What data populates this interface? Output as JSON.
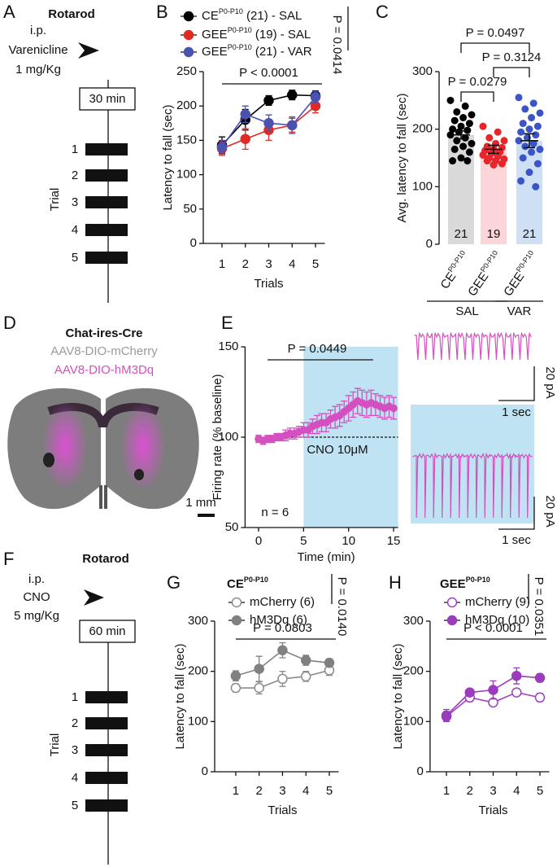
{
  "panel_labels": [
    "A",
    "B",
    "C",
    "D",
    "E",
    "F",
    "G",
    "H"
  ],
  "rotarod_a": {
    "title": "Rotarod",
    "route": "i.p.",
    "drug": "Varenicline",
    "dose": "1 mg/Kg",
    "wait": "30 min",
    "trials": [
      1,
      2,
      3,
      4,
      5
    ],
    "trial_label": "Trial"
  },
  "rotarod_f": {
    "title": "Rotarod",
    "route": "i.p.",
    "drug": "CNO",
    "dose": "5 mg/Kg",
    "wait": "60 min",
    "trials": [
      1,
      2,
      3,
      4,
      5
    ],
    "trial_label": "Trial"
  },
  "histology": {
    "title": "Chat-ires-Cre",
    "line1": "AAV8-DIO-mCherry",
    "line2": "AAV8-DIO-hM3Dq",
    "scale": "1 mm"
  },
  "traces": {
    "scale_current": [
      "20 pA",
      "20 pA"
    ],
    "scale_time": [
      "1 sec",
      "1 sec"
    ]
  },
  "chart_data": [
    {
      "type": "line",
      "xlabel": "Trials",
      "ylabel": "Latency to fall (sec)",
      "x": [
        1,
        2,
        3,
        4,
        5
      ],
      "xlim": [
        0.2,
        5.4
      ],
      "xticks": [
        1,
        2,
        3,
        4,
        5
      ],
      "ylim": [
        0,
        250
      ],
      "yticks": [
        0,
        50,
        100,
        150,
        200,
        250
      ],
      "series": [
        {
          "name": "CE",
          "name_sup": "P0-P10",
          "name_suffix": " (21) - SAL",
          "color": "#000000",
          "marker": "filled",
          "values": [
            143,
            180,
            208,
            216,
            215
          ],
          "errors": [
            12,
            15,
            7,
            7,
            7
          ]
        },
        {
          "name": "GEE",
          "name_sup": "P0-P10",
          "name_suffix": " (19) - SAL",
          "color": "#e02a26",
          "marker": "filled",
          "values": [
            138,
            152,
            165,
            172,
            200
          ],
          "errors": [
            10,
            15,
            15,
            10,
            10
          ]
        },
        {
          "name": "GEE",
          "name_sup": "P0-P10",
          "name_suffix": " (21) - VAR",
          "color": "#4a52b0",
          "marker": "filled",
          "values": [
            140,
            188,
            175,
            172,
            213
          ],
          "errors": [
            10,
            12,
            12,
            12,
            8
          ]
        }
      ],
      "stat": "P < 0.0001",
      "stat_span": [
        1,
        5
      ],
      "side_stat": "P = 0.0414"
    },
    {
      "type": "bar",
      "ylabel": "Avg. latency to fall (sec)",
      "categories": [
        "CE",
        "GEE",
        "GEE"
      ],
      "category_sups": [
        "P0-P10",
        "P0-P10",
        "P0-P10"
      ],
      "values": [
        190,
        165,
        180
      ],
      "errors": [
        7,
        7,
        12
      ],
      "bar_colors": [
        "#d9d9d9",
        "#fcd5d8",
        "#cfe0f5"
      ],
      "point_colors": [
        "#000000",
        "#e8262a",
        "#3b55c6"
      ],
      "points": [
        [
          250,
          240,
          230,
          225,
          220,
          215,
          210,
          205,
          200,
          198,
          195,
          190,
          185,
          180,
          175,
          170,
          165,
          160,
          150,
          145,
          145
        ],
        [
          205,
          195,
          185,
          180,
          175,
          170,
          168,
          165,
          163,
          160,
          158,
          155,
          153,
          150,
          148,
          145,
          145,
          140,
          138
        ],
        [
          255,
          245,
          235,
          228,
          220,
          210,
          205,
          200,
          195,
          190,
          185,
          180,
          175,
          170,
          165,
          160,
          150,
          140,
          125,
          110,
          100
        ]
      ],
      "n_labels": [
        21,
        19,
        21
      ],
      "ylim": [
        0,
        300
      ],
      "yticks": [
        0,
        100,
        200,
        300
      ],
      "groups": [
        {
          "label": "SAL",
          "members": [
            0,
            1
          ]
        },
        {
          "label": "VAR",
          "members": [
            2
          ]
        }
      ],
      "comparisons": [
        {
          "label": "P = 0.0279",
          "between": [
            0,
            1
          ]
        },
        {
          "label": "P = 0.3124",
          "between": [
            1,
            2
          ]
        },
        {
          "label": "P = 0.0497",
          "between": [
            0,
            2
          ]
        }
      ]
    },
    {
      "type": "line",
      "xlabel": "Time (min)",
      "ylabel": "Firing rate (% baseline)",
      "x": [
        0,
        0.5,
        1,
        1.5,
        2,
        2.5,
        3,
        3.5,
        4,
        4.5,
        5,
        5.5,
        6,
        6.5,
        7,
        7.5,
        8,
        8.5,
        9,
        9.5,
        10,
        10.5,
        11,
        11.5,
        12,
        12.5,
        13,
        13.5,
        14,
        14.5,
        15
      ],
      "values": [
        99,
        98,
        99,
        99,
        100,
        100,
        101,
        102,
        102,
        103,
        104,
        104,
        106,
        107,
        108,
        108,
        110,
        111,
        112,
        114,
        116,
        118,
        120,
        119,
        118,
        119,
        118,
        117,
        116,
        117,
        116
      ],
      "errors": [
        2,
        2,
        2,
        2,
        2,
        2,
        3,
        3,
        3,
        3,
        4,
        4,
        4,
        5,
        5,
        5,
        5,
        6,
        6,
        6,
        7,
        7,
        7,
        7,
        7,
        7,
        6,
        6,
        6,
        6,
        6
      ],
      "color": "#d44fbf",
      "marker": "filled",
      "xlim": [
        -1.5,
        15.5
      ],
      "xticks": [
        0,
        5,
        10,
        15
      ],
      "ylim": [
        50,
        150
      ],
      "yticks": [
        50,
        100,
        150
      ],
      "shade_from": 5,
      "shade_color": "#bfe3f2",
      "baseline": 100,
      "baseline_label": "CNO 10μM",
      "n_label": "n = 6",
      "stat": "P = 0.0449",
      "stat_span": [
        1,
        12
      ]
    },
    {
      "type": "line",
      "title": "CE",
      "title_sup": "P0-P10",
      "xlabel": "Trials",
      "ylabel": "Latency to fall (sec)",
      "x": [
        1,
        2,
        3,
        4,
        5
      ],
      "xlim": [
        0.1,
        5.4
      ],
      "xticks": [
        1,
        2,
        3,
        4,
        5
      ],
      "ylim": [
        0,
        300
      ],
      "yticks": [
        0,
        100,
        200,
        300
      ],
      "series": [
        {
          "name": "mCherry (6)",
          "color": "#8c8c8c",
          "marker": "open",
          "values": [
            167,
            167,
            185,
            190,
            202
          ],
          "errors": [
            8,
            12,
            15,
            10,
            10
          ]
        },
        {
          "name": "hM3Dq (6)",
          "color": "#808080",
          "marker": "filled",
          "values": [
            191,
            205,
            242,
            222,
            217
          ],
          "errors": [
            10,
            25,
            15,
            10,
            8
          ]
        }
      ],
      "stat": "P = 0.0803",
      "stat_span": [
        1,
        5
      ],
      "side_stat": "P = 0.0140"
    },
    {
      "type": "line",
      "title": "GEE",
      "title_sup": "P0-P10",
      "xlabel": "Trials",
      "ylabel": "Latency to fall (sec)",
      "x": [
        1,
        2,
        3,
        4,
        5
      ],
      "xlim": [
        0.3,
        5.4
      ],
      "xticks": [
        1,
        2,
        3,
        4,
        5
      ],
      "ylim": [
        0,
        300
      ],
      "yticks": [
        0,
        100,
        200,
        300
      ],
      "series": [
        {
          "name": "mCherry (9)",
          "color": "#a040c0",
          "marker": "open",
          "values": [
            110,
            148,
            138,
            158,
            148
          ],
          "errors": [
            10,
            8,
            6,
            6,
            8
          ]
        },
        {
          "name": "hM3Dq (10)",
          "color": "#9a3cbc",
          "marker": "filled",
          "values": [
            112,
            158,
            163,
            191,
            187
          ],
          "errors": [
            12,
            6,
            18,
            16,
            8
          ]
        }
      ],
      "stat": "P < 0.0001",
      "stat_span": [
        1,
        5
      ],
      "side_stat": "P = 0.0351"
    }
  ]
}
